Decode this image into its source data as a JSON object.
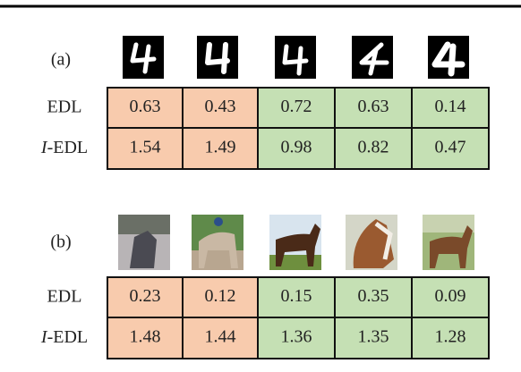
{
  "panels": [
    {
      "label": "(a)",
      "rows": [
        {
          "name": "EDL",
          "values": [
            0.63,
            0.43,
            0.72,
            0.63,
            0.14
          ]
        },
        {
          "prefix": "I",
          "name": "-EDL",
          "values": [
            1.54,
            1.49,
            0.98,
            0.82,
            0.47
          ]
        }
      ]
    },
    {
      "label": "(b)",
      "rows": [
        {
          "name": "EDL",
          "values": [
            0.23,
            0.12,
            0.15,
            0.35,
            0.09
          ]
        },
        {
          "prefix": "I",
          "name": "-EDL",
          "values": [
            1.48,
            1.44,
            1.36,
            1.35,
            1.28
          ]
        }
      ]
    }
  ]
}
